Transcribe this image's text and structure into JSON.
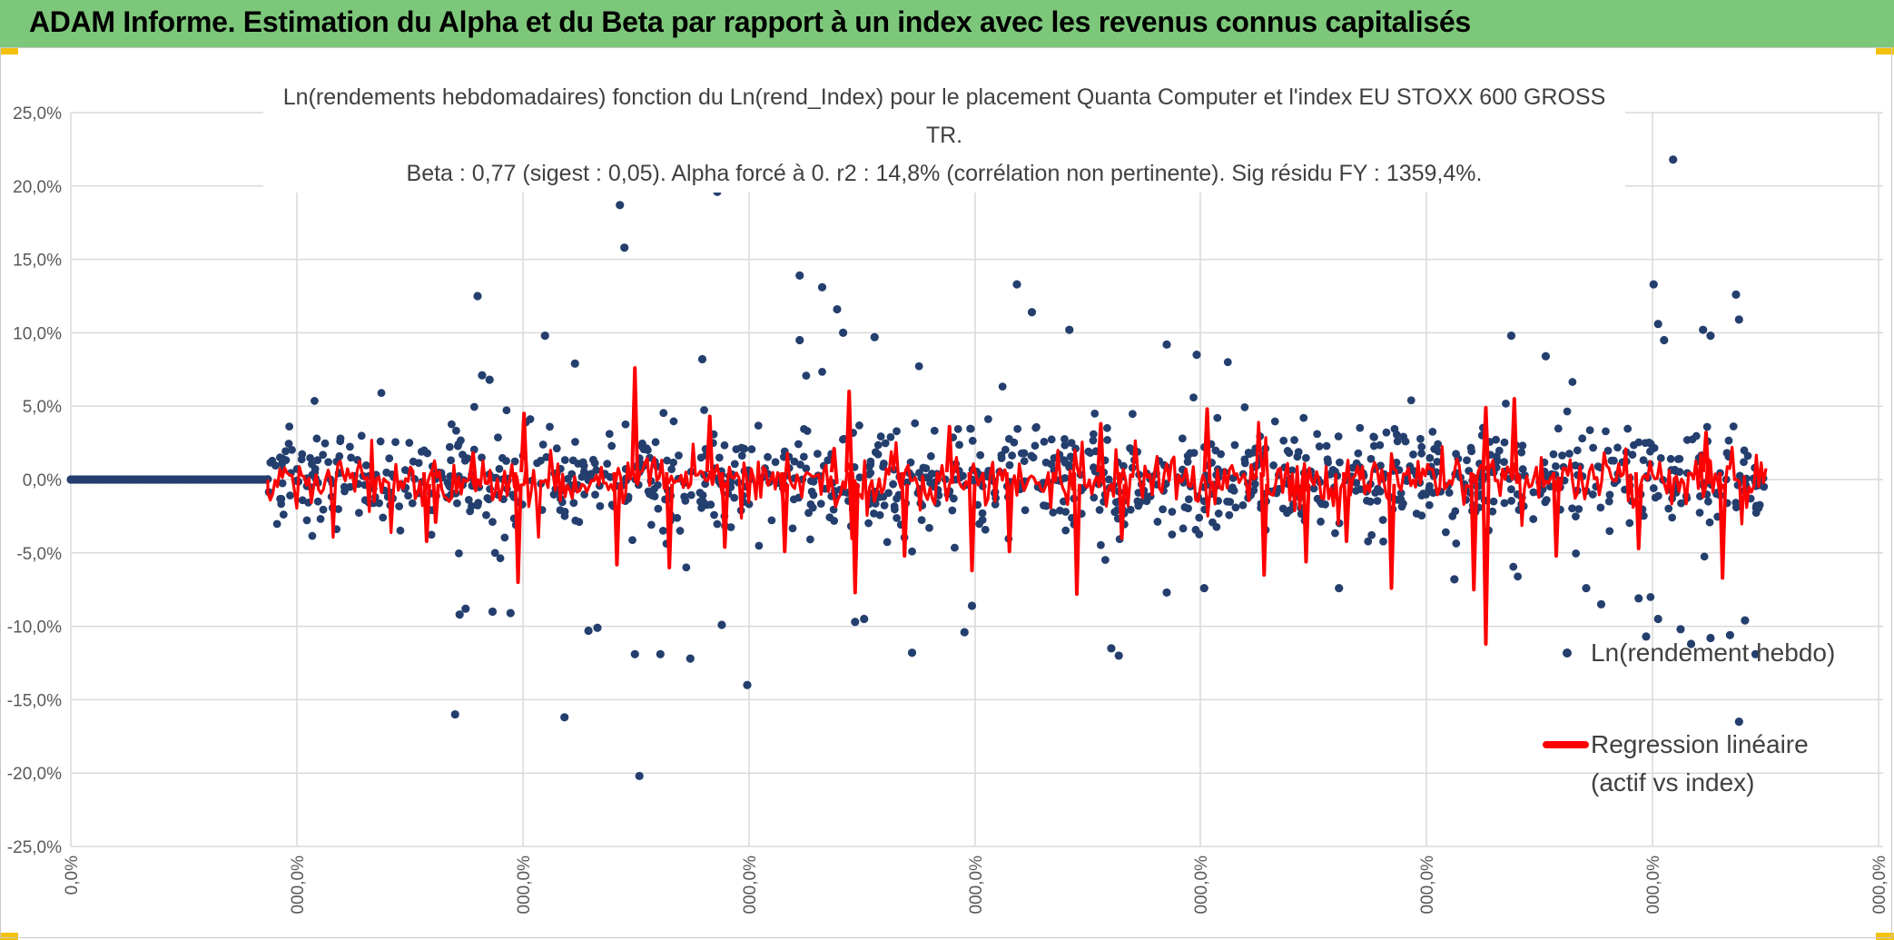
{
  "header": {
    "title": "ADAM Informe. Estimation du Alpha et du Beta par rapport à un index avec les revenus connus capitalisés",
    "background": "#7dc77a"
  },
  "chart_data": {
    "type": "scatter",
    "title_line1": "Ln(rendements hebdomadaires) fonction du Ln(rend_Index) pour le placement Quanta Computer  et l'index EU STOXX 600 GROSS TR.",
    "title_line2": "Beta : 0,77 (sigest : 0,05). Alpha forcé à 0. r2 : 14,8% (corrélation non pertinente). Sig résidu FY : 1359,4%.",
    "xlabel": "",
    "ylabel": "",
    "ylim": [
      -0.25,
      0.25
    ],
    "y_ticks": [
      "25,0%",
      "20,0%",
      "15,0%",
      "10,0%",
      "5,0%",
      "0,0%",
      "-5,0%",
      "-10,0%",
      "-15,0%",
      "-20,0%",
      "-25,0%"
    ],
    "x_ticks": [
      "0,0%",
      "000,0%",
      "000,0%",
      "000,0%",
      "000,0%",
      "000,0%",
      "000,0%",
      "000,0%",
      "000,0%"
    ],
    "grid": true,
    "legend_position": "right",
    "series": [
      {
        "name": "Ln(rendement hebdo)",
        "color": "#243f6e",
        "marker": "dot",
        "flat_points_y": 0.0,
        "flat_points_count": 85,
        "points": [
          [
            0.14,
            0.125
          ],
          [
            0.235,
            0.187
          ],
          [
            0.238,
            0.158
          ],
          [
            0.3,
            0.196
          ],
          [
            0.355,
            0.095
          ],
          [
            0.355,
            0.139
          ],
          [
            0.37,
            0.131
          ],
          [
            0.38,
            0.116
          ],
          [
            0.384,
            0.1
          ],
          [
            0.405,
            0.097
          ],
          [
            0.5,
            0.133
          ],
          [
            0.51,
            0.114
          ],
          [
            0.535,
            0.102
          ],
          [
            0.6,
            0.092
          ],
          [
            0.62,
            0.085
          ],
          [
            0.83,
            0.098
          ],
          [
            0.853,
            0.084
          ],
          [
            0.938,
            0.218
          ],
          [
            0.925,
            0.133
          ],
          [
            0.928,
            0.106
          ],
          [
            0.932,
            0.095
          ],
          [
            0.98,
            0.126
          ],
          [
            0.982,
            0.109
          ],
          [
            0.963,
            0.098
          ],
          [
            0.958,
            0.102
          ],
          [
            0.185,
            0.098
          ],
          [
            0.205,
            0.079
          ],
          [
            0.143,
            0.071
          ],
          [
            0.148,
            0.068
          ],
          [
            0.29,
            0.082
          ],
          [
            0.15,
            -0.09
          ],
          [
            0.162,
            -0.091
          ],
          [
            0.198,
            -0.162
          ],
          [
            0.214,
            -0.103
          ],
          [
            0.22,
            -0.101
          ],
          [
            0.245,
            -0.119
          ],
          [
            0.248,
            -0.202
          ],
          [
            0.262,
            -0.119
          ],
          [
            0.282,
            -0.122
          ],
          [
            0.303,
            -0.099
          ],
          [
            0.32,
            -0.14
          ],
          [
            0.392,
            -0.097
          ],
          [
            0.398,
            -0.095
          ],
          [
            0.43,
            -0.118
          ],
          [
            0.465,
            -0.104
          ],
          [
            0.563,
            -0.115
          ],
          [
            0.568,
            -0.12
          ],
          [
            0.6,
            -0.077
          ],
          [
            0.625,
            -0.074
          ],
          [
            0.715,
            -0.074
          ],
          [
            0.792,
            -0.068
          ],
          [
            0.92,
            -0.107
          ],
          [
            0.928,
            -0.095
          ],
          [
            0.943,
            -0.102
          ],
          [
            0.95,
            -0.112
          ],
          [
            0.963,
            -0.108
          ],
          [
            0.976,
            -0.106
          ],
          [
            0.982,
            -0.165
          ],
          [
            0.986,
            -0.096
          ],
          [
            0.993,
            -0.119
          ],
          [
            0.89,
            -0.085
          ],
          [
            0.88,
            -0.074
          ],
          [
            0.915,
            -0.081
          ],
          [
            0.47,
            -0.086
          ],
          [
            0.128,
            -0.092
          ],
          [
            0.125,
            -0.16
          ],
          [
            0.132,
            -0.088
          ]
        ]
      },
      {
        "name": "Regression linéaire\n(actif vs index)",
        "legend_line1": "Regression linéaire",
        "legend_line2": "(actif vs index)",
        "color": "#ff0000",
        "spikes": [
          [
            0.245,
            0.076
          ],
          [
            0.233,
            -0.058
          ],
          [
            0.167,
            -0.07
          ],
          [
            0.171,
            0.045
          ],
          [
            0.295,
            0.043
          ],
          [
            0.378,
            0.021
          ],
          [
            0.425,
            -0.052
          ],
          [
            0.39,
            -0.04
          ],
          [
            0.388,
            0.06
          ],
          [
            0.392,
            -0.077
          ],
          [
            0.47,
            -0.062
          ],
          [
            0.54,
            -0.078
          ],
          [
            0.556,
            0.038
          ],
          [
            0.57,
            -0.04
          ],
          [
            0.627,
            0.048
          ],
          [
            0.665,
            -0.065
          ],
          [
            0.693,
            -0.056
          ],
          [
            0.75,
            -0.074
          ],
          [
            0.805,
            -0.075
          ],
          [
            0.813,
            0.049
          ],
          [
            0.813,
            -0.112
          ],
          [
            0.832,
            0.055
          ],
          [
            0.86,
            -0.052
          ],
          [
            0.915,
            -0.047
          ],
          [
            0.971,
            -0.067
          ],
          [
            0.96,
            0.032
          ],
          [
            0.137,
            0.018
          ],
          [
            0.112,
            -0.029
          ],
          [
            0.106,
            -0.042
          ],
          [
            0.305,
            -0.046
          ],
          [
            0.268,
            -0.06
          ],
          [
            0.495,
            -0.049
          ],
          [
            0.345,
            -0.049
          ],
          [
            0.72,
            -0.042
          ],
          [
            0.455,
            0.036
          ]
        ]
      }
    ]
  }
}
